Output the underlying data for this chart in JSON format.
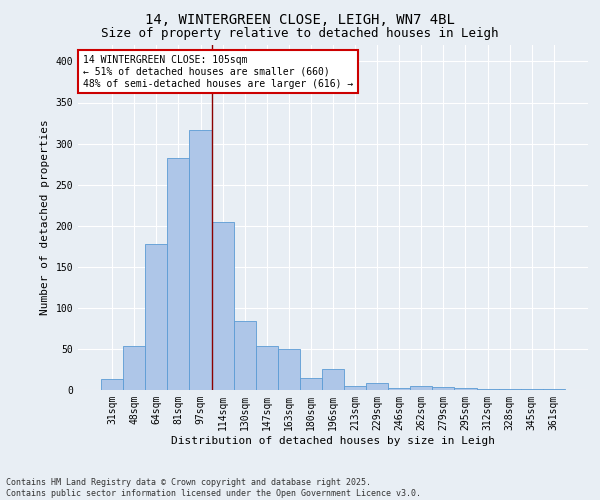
{
  "title1": "14, WINTERGREEN CLOSE, LEIGH, WN7 4BL",
  "title2": "Size of property relative to detached houses in Leigh",
  "xlabel": "Distribution of detached houses by size in Leigh",
  "ylabel": "Number of detached properties",
  "categories": [
    "31sqm",
    "48sqm",
    "64sqm",
    "81sqm",
    "97sqm",
    "114sqm",
    "130sqm",
    "147sqm",
    "163sqm",
    "180sqm",
    "196sqm",
    "213sqm",
    "229sqm",
    "246sqm",
    "262sqm",
    "279sqm",
    "295sqm",
    "312sqm",
    "328sqm",
    "345sqm",
    "361sqm"
  ],
  "values": [
    13,
    53,
    178,
    282,
    316,
    204,
    84,
    53,
    50,
    15,
    25,
    5,
    9,
    3,
    5,
    4,
    2,
    1,
    1,
    1,
    1
  ],
  "bar_color": "#aec6e8",
  "bar_edge_color": "#5b9bd5",
  "background_color": "#e8eef4",
  "grid_color": "#ffffff",
  "vline_x": 4.5,
  "vline_color": "#8b0000",
  "annotation_text": "14 WINTERGREEN CLOSE: 105sqm\n← 51% of detached houses are smaller (660)\n48% of semi-detached houses are larger (616) →",
  "annotation_box_color": "#ffffff",
  "annotation_box_edge": "#cc0000",
  "ylim": [
    0,
    420
  ],
  "yticks": [
    0,
    50,
    100,
    150,
    200,
    250,
    300,
    350,
    400
  ],
  "footnote": "Contains HM Land Registry data © Crown copyright and database right 2025.\nContains public sector information licensed under the Open Government Licence v3.0.",
  "title_fontsize": 10,
  "subtitle_fontsize": 9,
  "axis_label_fontsize": 8,
  "tick_fontsize": 7,
  "annotation_fontsize": 7,
  "footnote_fontsize": 6
}
